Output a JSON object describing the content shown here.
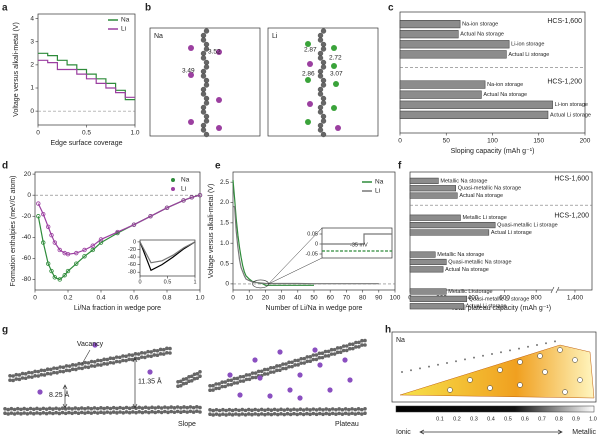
{
  "chart_data": [
    {
      "type": "line",
      "x_label": "Edge surface coverage",
      "y_label": "Voltage versus alkali-metal (V)",
      "x": [
        0,
        0.1,
        0.1,
        0.2,
        0.2,
        0.3,
        0.3,
        0.4,
        0.4,
        0.5,
        0.5,
        0.6,
        0.6,
        0.7,
        0.7,
        0.8,
        0.8,
        0.9,
        0.9,
        1.0
      ],
      "series": [
        {
          "name": "Na",
          "color": "#2e8b3a",
          "values": [
            2.5,
            2.5,
            2.4,
            2.4,
            2.2,
            2.2,
            2.0,
            2.0,
            1.8,
            1.8,
            1.6,
            1.6,
            1.4,
            1.4,
            1.2,
            1.2,
            0.9,
            0.9,
            0.5,
            0.5
          ]
        },
        {
          "name": "Li",
          "color": "#9b3fa0",
          "values": [
            2.2,
            2.2,
            2.1,
            2.1,
            1.8,
            1.8,
            1.8,
            1.8,
            1.6,
            1.6,
            1.4,
            1.4,
            1.2,
            1.2,
            1.0,
            1.0,
            0.8,
            0.8,
            0.6,
            0.6
          ]
        }
      ],
      "xlim": [
        0,
        1
      ],
      "xticks": [
        0,
        0.5,
        {
          "value": 1,
          "label": "1.0"
        }
      ],
      "ylim": [
        -0.6,
        4.2
      ],
      "yticks": [
        0,
        1,
        2,
        3,
        4
      ],
      "reference_line": 0
    },
    {
      "type": "hbar",
      "x_label": "Sloping capacity (mAh g⁻¹)",
      "group_labels": [
        "HCS-1,600",
        "HCS-1,200"
      ],
      "categories": [
        "Na-ion storage",
        "Actual Na storage",
        "Li-ion storage",
        "Actual Li storage",
        "Na-ion storage",
        "Actual Na storage",
        "Li-ion storage",
        "Actual Li storage"
      ],
      "values": [
        65,
        63,
        118,
        115,
        92,
        88,
        165,
        160
      ],
      "color": "#8c8c8c",
      "xlim": [
        0,
        200
      ],
      "xticks": [
        0,
        50,
        100,
        150,
        200
      ]
    },
    {
      "type": "scatter",
      "x_label": "Li/Na fraction in wedge pore",
      "y_label": "Formation enthalpies (meV/C atom)",
      "x": [
        0.02,
        0.05,
        0.08,
        0.1,
        0.12,
        0.15,
        0.18,
        0.2,
        0.25,
        0.3,
        0.35,
        0.4,
        0.5,
        0.6,
        0.7,
        0.8,
        0.9,
        0.95,
        1.0
      ],
      "series": [
        {
          "name": "Na",
          "color": "#2e8b3a",
          "values": [
            -20,
            -45,
            -65,
            -72,
            -78,
            -80,
            -76,
            -72,
            -65,
            -58,
            -52,
            -45,
            -36,
            -28,
            -20,
            -12,
            -5,
            -2,
            0
          ]
        },
        {
          "name": "Li",
          "color": "#9b3fa0",
          "values": [
            -8,
            -18,
            -30,
            -38,
            -45,
            -52,
            -55,
            -56,
            -55,
            -52,
            -48,
            -42,
            -35,
            -28,
            -20,
            -12,
            -5,
            -2,
            0
          ]
        }
      ],
      "xlim": [
        0,
        1
      ],
      "xticks": [
        0,
        0.2,
        0.4,
        0.6,
        0.8,
        {
          "value": 1,
          "label": "1.0"
        }
      ],
      "ylim": [
        -90,
        22
      ],
      "yticks": [
        20,
        0,
        -20,
        -40,
        -60,
        -80
      ],
      "reference_line": 0
    },
    {
      "type": "line",
      "x": [
        0,
        0.2,
        0.4,
        0.6,
        0.8,
        1
      ],
      "series": [
        {
          "color": "#000000",
          "values": [
            0,
            -75,
            -60,
            -40,
            -18,
            0
          ]
        },
        {
          "color": "#777777",
          "values": [
            0,
            -55,
            -50,
            -35,
            -15,
            0
          ]
        }
      ],
      "xlim": [
        0,
        1
      ],
      "xticks": [
        0,
        0.5,
        1
      ],
      "ylim": [
        -90,
        5
      ],
      "yticks": [
        0,
        -20,
        -40,
        -60,
        -80
      ]
    },
    {
      "type": "line",
      "x_label": "Number of Li/Na in wedge pore",
      "y_label": "Voltage versus alkali-metal (V)",
      "x": [
        0,
        1,
        2,
        3,
        4,
        5,
        6,
        7,
        8,
        10,
        12,
        15,
        18,
        20,
        25,
        30,
        40,
        50,
        60,
        70,
        80,
        90
      ],
      "series": [
        {
          "name": "Na",
          "color": "#2e8b3a",
          "values": [
            2.55,
            2.1,
            1.6,
            1.2,
            0.9,
            0.65,
            0.45,
            0.3,
            0.2,
            0.12,
            0.06,
            0.03,
            0.01,
            -0.035,
            -0.035,
            -0.035,
            -0.035,
            -0.035,
            null,
            null,
            null,
            null
          ]
        },
        {
          "name": "Li",
          "color": "#777777",
          "values": [
            1.9,
            1.9,
            1.3,
            0.9,
            0.6,
            0.4,
            0.3,
            0.2,
            0.12,
            0.08,
            0.05,
            0.03,
            0.02,
            0.01,
            0.01,
            0.01,
            0.01,
            0.005,
            0.005,
            0.005,
            0.005,
            0.005
          ]
        }
      ],
      "xlim": [
        0,
        100
      ],
      "xticks": [
        0,
        10,
        20,
        30,
        40,
        50,
        60,
        70,
        80,
        90,
        100
      ],
      "ylim": [
        -0.15,
        2.75
      ],
      "yticks": [
        0,
        0.5,
        {
          "value": 1,
          "label": "1.0"
        },
        1.5,
        {
          "value": 2,
          "label": "2.0"
        },
        2.5
      ],
      "reference_line": 0
    },
    {
      "type": "line",
      "annotation": "-35 mV",
      "series": [
        {
          "color": "#2e8b3a",
          "x": [
            0,
            1
          ],
          "values": [
            -0.035,
            -0.035
          ]
        },
        {
          "color": "#777777",
          "x": [
            0,
            0.6,
            0.6,
            1
          ],
          "values": [
            0,
            0,
            0.05,
            0.05
          ]
        }
      ],
      "xlim": [
        0,
        1
      ],
      "ylim": [
        -0.07,
        0.08
      ],
      "yticks": [
        0.05,
        0,
        -0.05
      ]
    },
    {
      "type": "hbar",
      "x_label": "Total plateau capacity (mAh g⁻¹)",
      "group_labels": [
        "HCS-1,600",
        "HCS-1,200"
      ],
      "categories": [
        "Metallic Na storage",
        "Quasi-metallic Na storage",
        "Actual Na storage",
        "Metallic Li storage",
        "Quasi-metallic Li storage",
        "Actual Li storage",
        "Metallic Na storage",
        "Quasi-metallic Na storage",
        "Actual Na storage",
        "Metallic Li storage",
        "Quasi-metallic Li storage",
        "Actual Li storage"
      ],
      "values": [
        180,
        290,
        300,
        320,
        540,
        500,
        160,
        230,
        210,
        230,
        360,
        340
      ],
      "color": "#8c8c8c",
      "xlim": [
        0,
        1500
      ],
      "axis_break": [
        900,
        1300
      ],
      "xticks": [
        0,
        200,
        400,
        600,
        800,
        {
          "value": 1400,
          "label": "1,400"
        }
      ]
    }
  ],
  "figure": {
    "panel_labels": [
      "a",
      "b",
      "c",
      "d",
      "e",
      "f",
      "g",
      "h"
    ],
    "structures": [
      {
        "title": "Na",
        "distances": [
          "3.52",
          "3.49"
        ]
      },
      {
        "title": "Li",
        "distances": [
          "2.87",
          "2.72",
          "2.86",
          "3.07"
        ]
      }
    ],
    "models": {
      "vacancy": "Vacancy",
      "gap_small": "8.25 Å",
      "gap_large": "11.35 Å",
      "left": "Slope",
      "right": "Plateau"
    },
    "bonding": {
      "title": "Na",
      "ticks": [
        "0.1",
        "0.2",
        "0.3",
        "0.4",
        "0.5",
        "0.6",
        "0.7",
        "0.8",
        "0.9",
        "1.0"
      ],
      "left": "Ionic",
      "right": "Metallic"
    }
  }
}
